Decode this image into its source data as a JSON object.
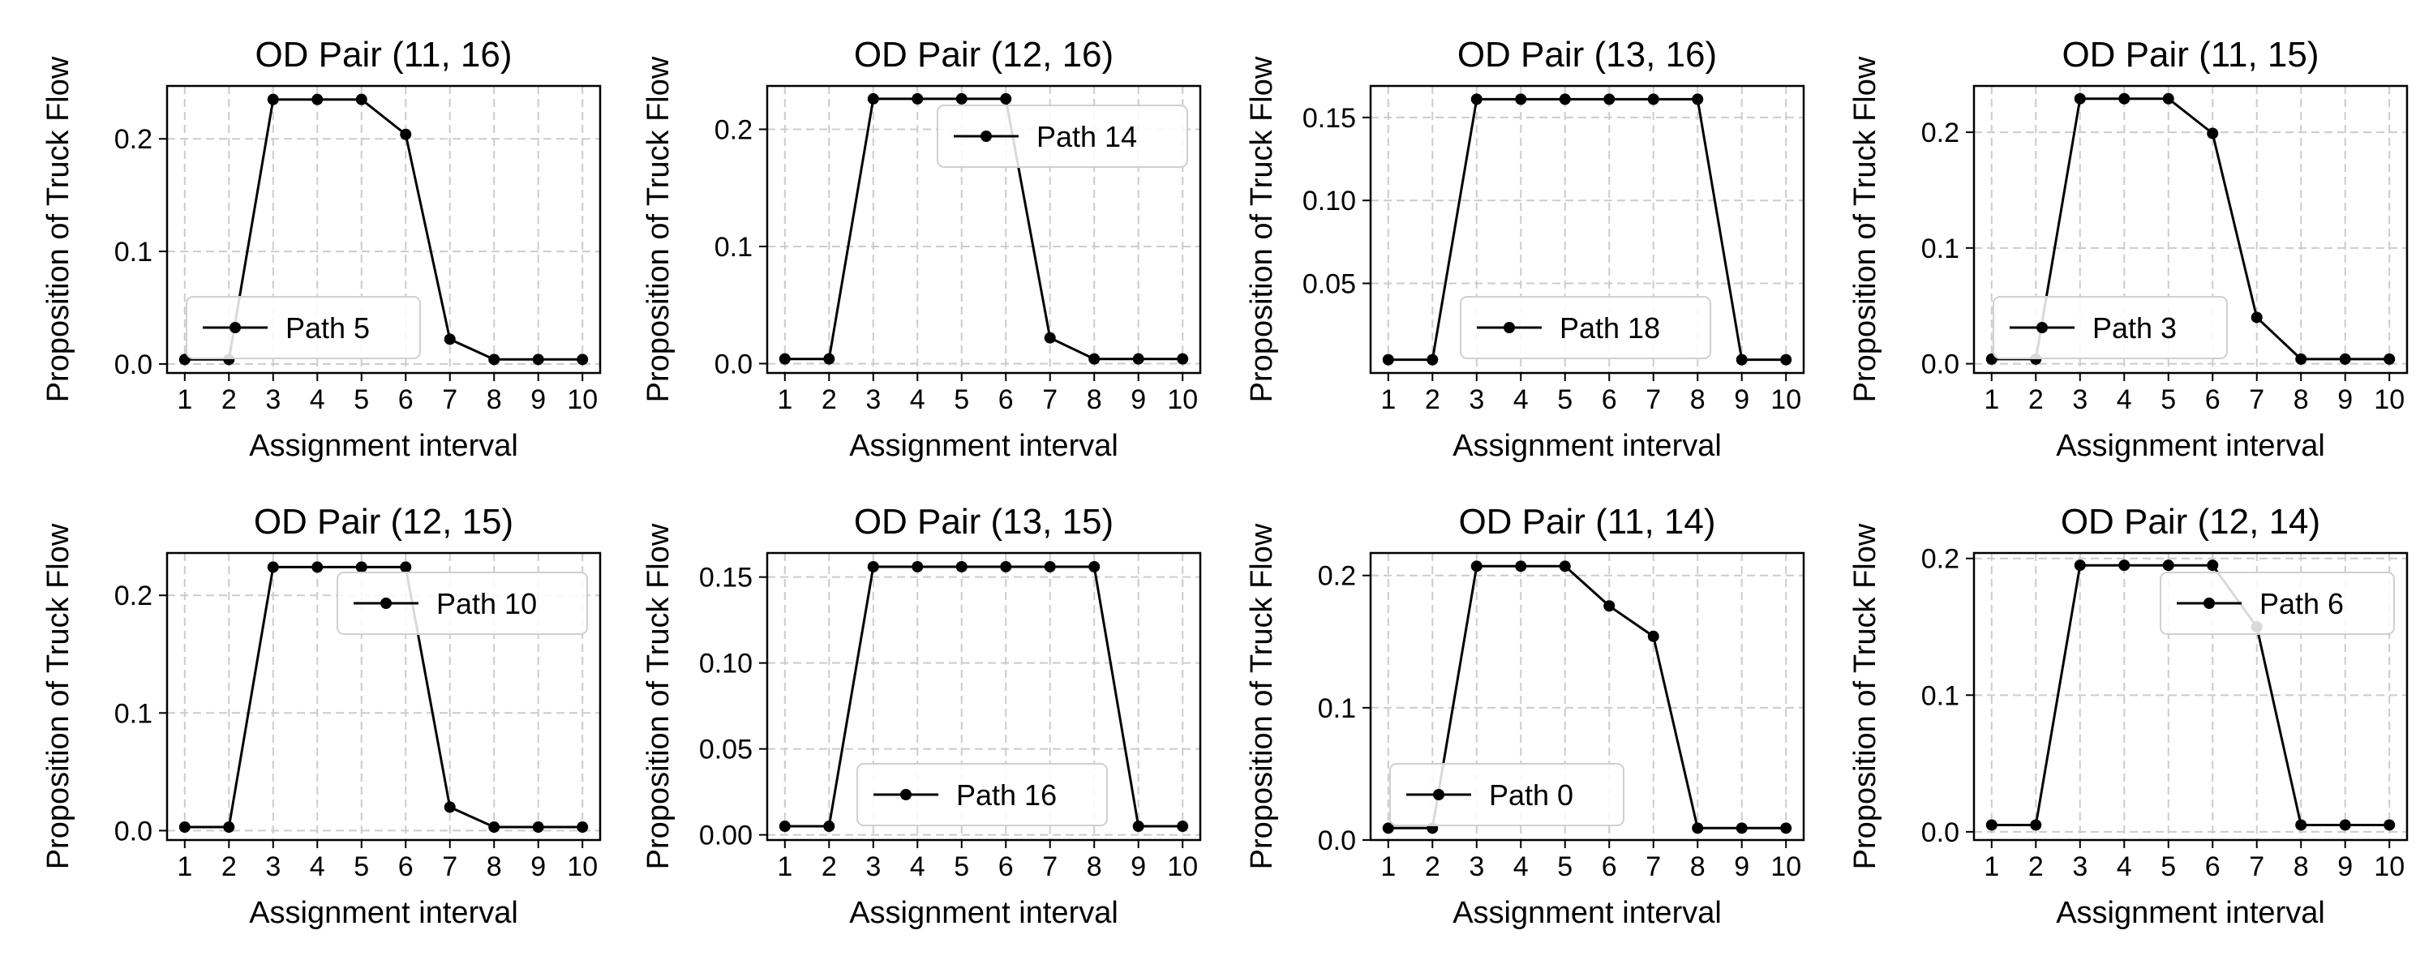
{
  "figure": {
    "line_color": "#000000",
    "grid_color": "#cccccc"
  },
  "chart_data": [
    {
      "type": "line",
      "title": "OD Pair (11, 16)",
      "xlabel": "Assignment interval",
      "ylabel": "Proposition of Truck Flow",
      "x": [
        1,
        2,
        3,
        4,
        5,
        6,
        7,
        8,
        9,
        10
      ],
      "series": [
        {
          "name": "Path 5",
          "values": [
            0.004,
            0.004,
            0.235,
            0.235,
            0.235,
            0.204,
            0.022,
            0.004,
            0.004,
            0.004
          ]
        }
      ],
      "xlim": [
        0.6,
        10.4
      ],
      "ylim": [
        -0.008,
        0.247
      ],
      "yticks": [
        0.0,
        0.1,
        0.2
      ],
      "ytick_labels": [
        "0.0",
        "0.1",
        "0.2"
      ],
      "grid": true,
      "legend": "lower-left"
    },
    {
      "type": "line",
      "title": "OD Pair (12, 16)",
      "xlabel": "Assignment interval",
      "ylabel": "Proposition of Truck Flow",
      "x": [
        1,
        2,
        3,
        4,
        5,
        6,
        7,
        8,
        9,
        10
      ],
      "series": [
        {
          "name": "Path 14",
          "values": [
            0.004,
            0.004,
            0.226,
            0.226,
            0.226,
            0.226,
            0.022,
            0.004,
            0.004,
            0.004
          ]
        }
      ],
      "xlim": [
        0.6,
        10.4
      ],
      "ylim": [
        -0.008,
        0.237
      ],
      "yticks": [
        0.0,
        0.1,
        0.2
      ],
      "ytick_labels": [
        "0.0",
        "0.1",
        "0.2"
      ],
      "grid": true,
      "legend": "upper-right"
    },
    {
      "type": "line",
      "title": "OD Pair (13, 16)",
      "xlabel": "Assignment interval",
      "ylabel": "Proposition of Truck Flow",
      "x": [
        1,
        2,
        3,
        4,
        5,
        6,
        7,
        8,
        9,
        10
      ],
      "series": [
        {
          "name": "Path 18",
          "values": [
            0.004,
            0.004,
            0.161,
            0.161,
            0.161,
            0.161,
            0.161,
            0.161,
            0.004,
            0.004
          ]
        }
      ],
      "xlim": [
        0.6,
        10.4
      ],
      "ylim": [
        -0.004,
        0.169
      ],
      "yticks": [
        0.05,
        0.1,
        0.15
      ],
      "ytick_labels": [
        "0.05",
        "0.10",
        "0.15"
      ],
      "grid": true,
      "legend": "lower-center"
    },
    {
      "type": "line",
      "title": "OD Pair (11, 15)",
      "xlabel": "Assignment interval",
      "ylabel": "Proposition of Truck Flow",
      "x": [
        1,
        2,
        3,
        4,
        5,
        6,
        7,
        8,
        9,
        10
      ],
      "series": [
        {
          "name": "Path 3",
          "values": [
            0.004,
            0.004,
            0.229,
            0.229,
            0.229,
            0.199,
            0.04,
            0.004,
            0.004,
            0.004
          ]
        }
      ],
      "xlim": [
        0.6,
        10.4
      ],
      "ylim": [
        -0.008,
        0.24
      ],
      "yticks": [
        0.0,
        0.1,
        0.2
      ],
      "ytick_labels": [
        "0.0",
        "0.1",
        "0.2"
      ],
      "grid": true,
      "legend": "lower-left"
    },
    {
      "type": "line",
      "title": "OD Pair (12, 15)",
      "xlabel": "Assignment interval",
      "ylabel": "Proposition of Truck Flow",
      "x": [
        1,
        2,
        3,
        4,
        5,
        6,
        7,
        8,
        9,
        10
      ],
      "series": [
        {
          "name": "Path 10",
          "values": [
            0.003,
            0.003,
            0.224,
            0.224,
            0.224,
            0.224,
            0.02,
            0.003,
            0.003,
            0.003
          ]
        }
      ],
      "xlim": [
        0.6,
        10.4
      ],
      "ylim": [
        -0.008,
        0.236
      ],
      "yticks": [
        0.0,
        0.1,
        0.2
      ],
      "ytick_labels": [
        "0.0",
        "0.1",
        "0.2"
      ],
      "grid": true,
      "legend": "upper-right"
    },
    {
      "type": "line",
      "title": "OD Pair (13, 15)",
      "xlabel": "Assignment interval",
      "ylabel": "Proposition of Truck Flow",
      "x": [
        1,
        2,
        3,
        4,
        5,
        6,
        7,
        8,
        9,
        10
      ],
      "series": [
        {
          "name": "Path 16",
          "values": [
            0.005,
            0.005,
            0.156,
            0.156,
            0.156,
            0.156,
            0.156,
            0.156,
            0.005,
            0.005
          ]
        }
      ],
      "xlim": [
        0.6,
        10.4
      ],
      "ylim": [
        -0.003,
        0.164
      ],
      "yticks": [
        0.0,
        0.05,
        0.1,
        0.15
      ],
      "ytick_labels": [
        "0.00",
        "0.05",
        "0.10",
        "0.15"
      ],
      "grid": true,
      "legend": "lower-center"
    },
    {
      "type": "line",
      "title": "OD Pair (11, 14)",
      "xlabel": "Assignment interval",
      "ylabel": "Proposition of Truck Flow",
      "x": [
        1,
        2,
        3,
        4,
        5,
        6,
        7,
        8,
        9,
        10
      ],
      "series": [
        {
          "name": "Path 0",
          "values": [
            0.009,
            0.009,
            0.207,
            0.207,
            0.207,
            0.177,
            0.154,
            0.009,
            0.009,
            0.009
          ]
        }
      ],
      "xlim": [
        0.6,
        10.4
      ],
      "ylim": [
        0.0,
        0.217
      ],
      "yticks": [
        0.0,
        0.1,
        0.2
      ],
      "ytick_labels": [
        "0.0",
        "0.1",
        "0.2"
      ],
      "grid": true,
      "legend": "lower-left"
    },
    {
      "type": "line",
      "title": "OD Pair (12, 14)",
      "xlabel": "Assignment interval",
      "ylabel": "Proposition of Truck Flow",
      "x": [
        1,
        2,
        3,
        4,
        5,
        6,
        7,
        8,
        9,
        10
      ],
      "series": [
        {
          "name": "Path 6",
          "values": [
            0.005,
            0.005,
            0.195,
            0.195,
            0.195,
            0.195,
            0.15,
            0.005,
            0.005,
            0.005
          ]
        }
      ],
      "xlim": [
        0.6,
        10.4
      ],
      "ylim": [
        -0.006,
        0.204
      ],
      "yticks": [
        0.0,
        0.1,
        0.2
      ],
      "ytick_labels": [
        "0.0",
        "0.1",
        "0.2"
      ],
      "grid": true,
      "legend": "upper-right"
    }
  ]
}
